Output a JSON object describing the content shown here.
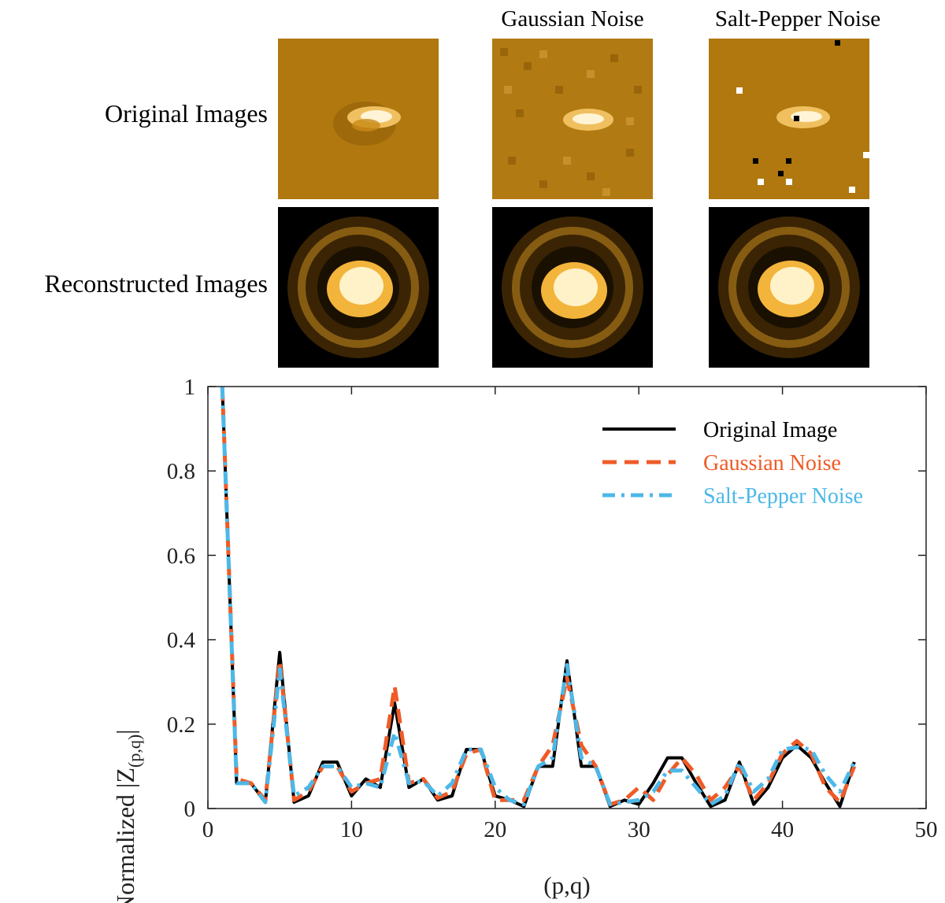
{
  "figure": {
    "column_titles": [
      "",
      "Gaussian Noise",
      "Salt-Pepper Noise"
    ],
    "row_labels": [
      "Original Images",
      "Reconstructed Images"
    ]
  },
  "chart_data": {
    "type": "line",
    "xlabel": "(p,q)",
    "ylabel": "Normalized |Z(p,q)|",
    "ylabel_main": "Normalized |Z",
    "ylabel_sub": "(p,q)",
    "ylabel_end": "|",
    "xlim": [
      0,
      50
    ],
    "ylim": [
      0,
      1
    ],
    "xticks": [
      0,
      10,
      20,
      30,
      40,
      50
    ],
    "yticks": [
      0,
      0.2,
      0.4,
      0.6,
      0.8,
      1
    ],
    "ytick_labels": [
      "0",
      "0.2",
      "0.4",
      "0.6",
      "0.8",
      "1"
    ],
    "legend_position": "top-right",
    "x": [
      1,
      2,
      3,
      4,
      5,
      6,
      7,
      8,
      9,
      10,
      11,
      12,
      13,
      14,
      15,
      16,
      17,
      18,
      19,
      20,
      21,
      22,
      23,
      24,
      25,
      26,
      27,
      28,
      29,
      30,
      31,
      32,
      33,
      34,
      35,
      36,
      37,
      38,
      39,
      40,
      41,
      42,
      43,
      44,
      45
    ],
    "series": [
      {
        "name": "Original Image",
        "color": "#000000",
        "dash": "solid",
        "values": [
          1.0,
          0.06,
          0.06,
          0.015,
          0.37,
          0.015,
          0.03,
          0.11,
          0.11,
          0.03,
          0.07,
          0.05,
          0.25,
          0.05,
          0.07,
          0.02,
          0.03,
          0.14,
          0.14,
          0.03,
          0.02,
          0.005,
          0.1,
          0.1,
          0.35,
          0.1,
          0.1,
          0.005,
          0.02,
          0.01,
          0.06,
          0.12,
          0.12,
          0.06,
          0.005,
          0.02,
          0.11,
          0.01,
          0.05,
          0.12,
          0.15,
          0.12,
          0.06,
          0.005,
          0.11
        ]
      },
      {
        "name": "Gaussian Noise",
        "color": "#ef5b27",
        "dash": "dashed",
        "values": [
          1.0,
          0.07,
          0.06,
          0.02,
          0.35,
          0.02,
          0.04,
          0.1,
          0.1,
          0.04,
          0.06,
          0.07,
          0.29,
          0.06,
          0.07,
          0.025,
          0.04,
          0.13,
          0.14,
          0.02,
          0.02,
          0.02,
          0.1,
          0.15,
          0.31,
          0.15,
          0.1,
          0.01,
          0.02,
          0.05,
          0.02,
          0.08,
          0.12,
          0.08,
          0.02,
          0.05,
          0.1,
          0.02,
          0.06,
          0.13,
          0.16,
          0.13,
          0.05,
          0.015,
          0.1
        ]
      },
      {
        "name": "Salt-Pepper Noise",
        "color": "#4db8e8",
        "dash": "dashdot",
        "values": [
          1.0,
          0.06,
          0.06,
          0.015,
          0.33,
          0.03,
          0.05,
          0.1,
          0.1,
          0.05,
          0.06,
          0.05,
          0.18,
          0.06,
          0.065,
          0.03,
          0.06,
          0.14,
          0.14,
          0.05,
          0.02,
          0.01,
          0.1,
          0.12,
          0.34,
          0.12,
          0.1,
          0.01,
          0.015,
          0.02,
          0.04,
          0.09,
          0.09,
          0.05,
          0.01,
          0.03,
          0.11,
          0.04,
          0.07,
          0.14,
          0.145,
          0.14,
          0.08,
          0.04,
          0.11
        ]
      }
    ]
  }
}
